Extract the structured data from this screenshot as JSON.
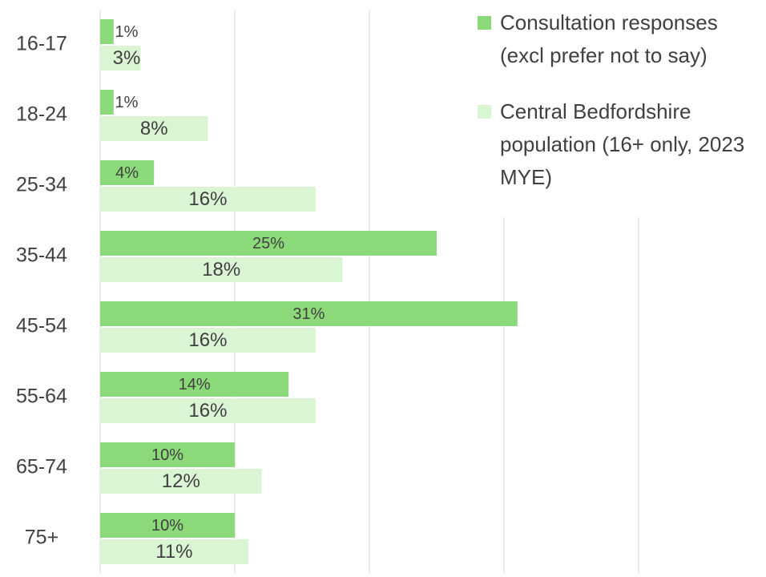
{
  "chart_data": {
    "type": "hbar",
    "categories": [
      "16-17",
      "18-24",
      "25-34",
      "35-44",
      "45-54",
      "55-64",
      "65-74",
      "75+"
    ],
    "series": [
      {
        "name": "Consultation responses (excl prefer not to say)",
        "color": "#8cd97a",
        "values": [
          1,
          1,
          4,
          25,
          31,
          14,
          10,
          10
        ],
        "value_labels": [
          "1%",
          "1%",
          "4%",
          "25%",
          "31%",
          "14%",
          "10%",
          "10%"
        ]
      },
      {
        "name": "Central Bedfordshire population (16+ only, 2023 MYE)",
        "color": "#d9f5d3",
        "values": [
          3,
          8,
          16,
          18,
          16,
          16,
          12,
          11
        ],
        "value_labels": [
          "3%",
          "8%",
          "16%",
          "18%",
          "16%",
          "16%",
          "12%",
          "11%"
        ]
      }
    ],
    "xlim": [
      0,
      40
    ],
    "xticks": [
      0,
      10,
      20,
      30,
      40
    ],
    "grid": true,
    "legend": "top-right"
  }
}
